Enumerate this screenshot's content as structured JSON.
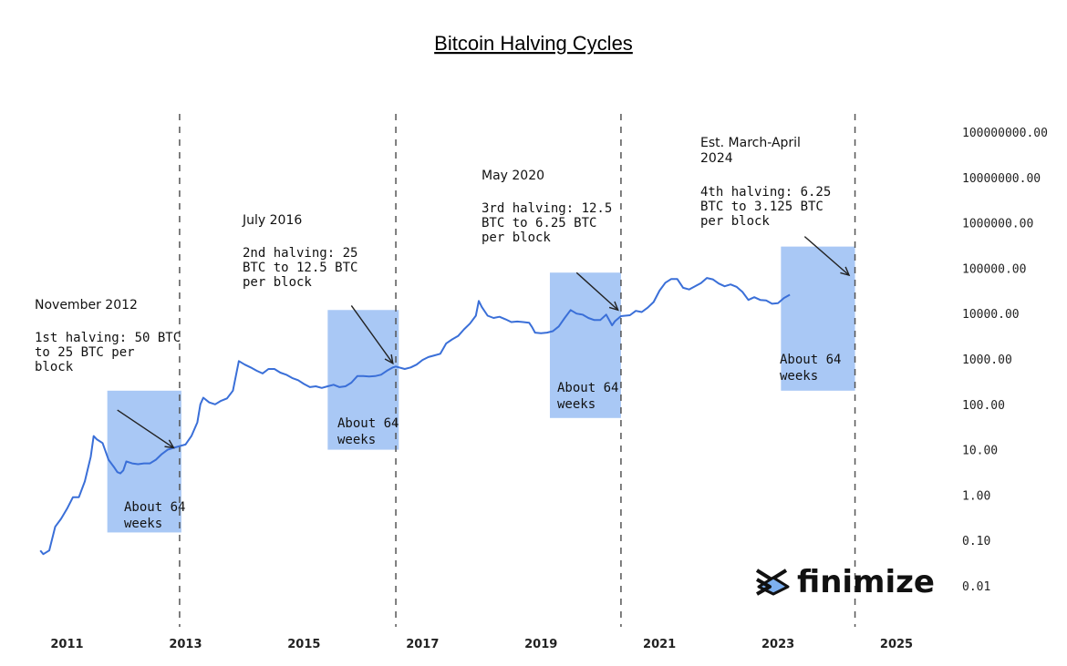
{
  "chart_data": {
    "type": "line",
    "title": "Bitcoin Halving Cycles",
    "yscale": "log",
    "ylim": [
      0.01,
      100000000
    ],
    "y_ticks": [
      "100000000.00",
      "10000000.00",
      "1000000.00",
      "100000.00",
      "10000.00",
      "1000.00",
      "100.00",
      "10.00",
      "1.00",
      "0.10",
      "0.01"
    ],
    "xlim": [
      2010.5,
      2025.6
    ],
    "x_ticks": [
      "2011",
      "2013",
      "2015",
      "2017",
      "2019",
      "2021",
      "2023",
      "2025"
    ],
    "colors": {
      "line": "#3a6fd8",
      "box": "#a9c8f5",
      "guide": "#555555"
    },
    "series": [
      {
        "values_xy": [
          [
            2010.55,
            0.06
          ],
          [
            2010.6,
            0.05
          ],
          [
            2010.7,
            0.06
          ],
          [
            2010.8,
            0.2
          ],
          [
            2010.9,
            0.3
          ],
          [
            2011.0,
            0.5
          ],
          [
            2011.1,
            0.9
          ],
          [
            2011.2,
            0.9
          ],
          [
            2011.3,
            2
          ],
          [
            2011.4,
            7
          ],
          [
            2011.45,
            20
          ],
          [
            2011.5,
            17
          ],
          [
            2011.6,
            14
          ],
          [
            2011.7,
            6
          ],
          [
            2011.8,
            4
          ],
          [
            2011.85,
            3.2
          ],
          [
            2011.9,
            3
          ],
          [
            2011.95,
            3.5
          ],
          [
            2012.0,
            5.5
          ],
          [
            2012.1,
            5
          ],
          [
            2012.2,
            4.8
          ],
          [
            2012.3,
            5
          ],
          [
            2012.4,
            5
          ],
          [
            2012.5,
            6
          ],
          [
            2012.6,
            8
          ],
          [
            2012.7,
            10
          ],
          [
            2012.8,
            11
          ],
          [
            2012.9,
            12
          ],
          [
            2013.0,
            13
          ],
          [
            2013.1,
            20
          ],
          [
            2013.2,
            40
          ],
          [
            2013.25,
            100
          ],
          [
            2013.3,
            140
          ],
          [
            2013.4,
            110
          ],
          [
            2013.5,
            100
          ],
          [
            2013.6,
            120
          ],
          [
            2013.7,
            135
          ],
          [
            2013.8,
            200
          ],
          [
            2013.9,
            900
          ],
          [
            2014.0,
            750
          ],
          [
            2014.1,
            650
          ],
          [
            2014.2,
            550
          ],
          [
            2014.3,
            480
          ],
          [
            2014.4,
            600
          ],
          [
            2014.5,
            600
          ],
          [
            2014.6,
            500
          ],
          [
            2014.7,
            450
          ],
          [
            2014.8,
            380
          ],
          [
            2014.9,
            340
          ],
          [
            2015.0,
            280
          ],
          [
            2015.1,
            240
          ],
          [
            2015.2,
            250
          ],
          [
            2015.3,
            230
          ],
          [
            2015.4,
            250
          ],
          [
            2015.5,
            270
          ],
          [
            2015.6,
            240
          ],
          [
            2015.7,
            250
          ],
          [
            2015.8,
            300
          ],
          [
            2015.9,
            420
          ],
          [
            2016.0,
            420
          ],
          [
            2016.1,
            410
          ],
          [
            2016.2,
            420
          ],
          [
            2016.3,
            450
          ],
          [
            2016.4,
            550
          ],
          [
            2016.5,
            650
          ],
          [
            2016.55,
            680
          ],
          [
            2016.7,
            600
          ],
          [
            2016.8,
            650
          ],
          [
            2016.9,
            750
          ],
          [
            2017.0,
            950
          ],
          [
            2017.1,
            1100
          ],
          [
            2017.2,
            1200
          ],
          [
            2017.3,
            1300
          ],
          [
            2017.4,
            2200
          ],
          [
            2017.5,
            2700
          ],
          [
            2017.6,
            3200
          ],
          [
            2017.7,
            4500
          ],
          [
            2017.8,
            6000
          ],
          [
            2017.9,
            9000
          ],
          [
            2017.95,
            19000
          ],
          [
            2018.0,
            14000
          ],
          [
            2018.1,
            9000
          ],
          [
            2018.2,
            8000
          ],
          [
            2018.3,
            8500
          ],
          [
            2018.4,
            7500
          ],
          [
            2018.5,
            6500
          ],
          [
            2018.6,
            6700
          ],
          [
            2018.7,
            6500
          ],
          [
            2018.8,
            6300
          ],
          [
            2018.85,
            5000
          ],
          [
            2018.9,
            3800
          ],
          [
            2019.0,
            3700
          ],
          [
            2019.1,
            3800
          ],
          [
            2019.2,
            4100
          ],
          [
            2019.3,
            5200
          ],
          [
            2019.4,
            8000
          ],
          [
            2019.5,
            12000
          ],
          [
            2019.6,
            10000
          ],
          [
            2019.7,
            9500
          ],
          [
            2019.8,
            8000
          ],
          [
            2019.9,
            7200
          ],
          [
            2020.0,
            7200
          ],
          [
            2020.1,
            9500
          ],
          [
            2020.2,
            5500
          ],
          [
            2020.25,
            6800
          ],
          [
            2020.35,
            8800
          ],
          [
            2020.5,
            9200
          ],
          [
            2020.6,
            11500
          ],
          [
            2020.7,
            10800
          ],
          [
            2020.8,
            13500
          ],
          [
            2020.9,
            18000
          ],
          [
            2021.0,
            32000
          ],
          [
            2021.1,
            48000
          ],
          [
            2021.2,
            58000
          ],
          [
            2021.3,
            58000
          ],
          [
            2021.4,
            37000
          ],
          [
            2021.5,
            34000
          ],
          [
            2021.6,
            40000
          ],
          [
            2021.7,
            47000
          ],
          [
            2021.8,
            61000
          ],
          [
            2021.9,
            57000
          ],
          [
            2022.0,
            46000
          ],
          [
            2022.1,
            40000
          ],
          [
            2022.2,
            44000
          ],
          [
            2022.3,
            39000
          ],
          [
            2022.4,
            30000
          ],
          [
            2022.5,
            20000
          ],
          [
            2022.6,
            23000
          ],
          [
            2022.7,
            20000
          ],
          [
            2022.8,
            19500
          ],
          [
            2022.9,
            16500
          ],
          [
            2023.0,
            17000
          ],
          [
            2023.1,
            22000
          ],
          [
            2023.2,
            26000
          ]
        ]
      }
    ],
    "halvings": [
      {
        "x": 2012.9,
        "box": {
          "x0": 2011.68,
          "x1": 2012.93,
          "y_lo": 0.15,
          "y_hi": 200
        },
        "date": "November 2012",
        "lines": [
          "1st halving: 50 BTC",
          "to 25 BTC per",
          "block"
        ],
        "box_label": [
          "About 64",
          "weeks"
        ],
        "arrow": {
          "from": [
            2011.85,
            75
          ],
          "to": [
            2012.8,
            11
          ]
        }
      },
      {
        "x": 2016.55,
        "box": {
          "x0": 2015.4,
          "x1": 2016.6,
          "y_lo": 10,
          "y_hi": 12000
        },
        "date": "July 2016",
        "lines": [
          "2nd halving: 25",
          "BTC to 12.5 BTC",
          "per block"
        ],
        "box_label": [
          "About 64",
          "weeks"
        ],
        "arrow": {
          "from": [
            2015.8,
            15000
          ],
          "to": [
            2016.5,
            800
          ]
        }
      },
      {
        "x": 2020.35,
        "box": {
          "x0": 2019.15,
          "x1": 2020.35,
          "y_lo": 50,
          "y_hi": 80000
        },
        "date": "May 2020",
        "lines": [
          "3rd halving: 12.5",
          "BTC to 6.25 BTC",
          "per block"
        ],
        "box_label": [
          "About 64",
          "weeks"
        ],
        "arrow": {
          "from": [
            2019.6,
            80000
          ],
          "to": [
            2020.3,
            12000
          ]
        }
      },
      {
        "x": 2024.3,
        "box": {
          "x0": 2023.05,
          "x1": 2024.3,
          "y_lo": 200,
          "y_hi": 300000
        },
        "date": "Est. March-April\n2024",
        "lines": [
          "4th halving: 6.25",
          "BTC to 3.125 BTC",
          "per block"
        ],
        "box_label": [
          "About 64",
          "weeks"
        ],
        "arrow": {
          "from": [
            2023.45,
            500000
          ],
          "to": [
            2024.2,
            70000
          ]
        }
      }
    ],
    "logo_text": "finimize"
  }
}
